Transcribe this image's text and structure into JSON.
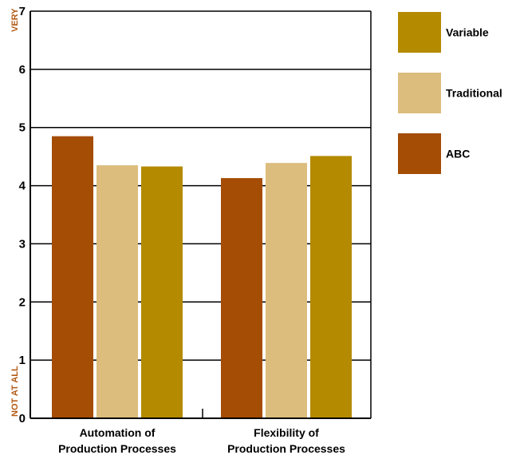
{
  "chart_data": {
    "type": "bar",
    "categories": [
      "Automation of\nProduction Processes",
      "Flexibility of\nProduction Processes"
    ],
    "series": [
      {
        "name": "ABC",
        "values": [
          4.85,
          4.13
        ],
        "color": "#a54c05"
      },
      {
        "name": "Traditional",
        "values": [
          4.35,
          4.39
        ],
        "color": "#dcbd7d"
      },
      {
        "name": "Variable",
        "values": [
          4.33,
          4.51
        ],
        "color": "#b48a00"
      }
    ],
    "legend_order": [
      "Variable",
      "Traditional",
      "ABC"
    ],
    "ylim": [
      0,
      7
    ],
    "yticks": [
      "0",
      "1",
      "2",
      "3",
      "4",
      "5",
      "6",
      "7"
    ],
    "y_top_label": "VERY",
    "y_bottom_label": "NOT AT ALL",
    "y_end_label_color": "#b35a14",
    "grid": true,
    "legend_position": "right"
  }
}
